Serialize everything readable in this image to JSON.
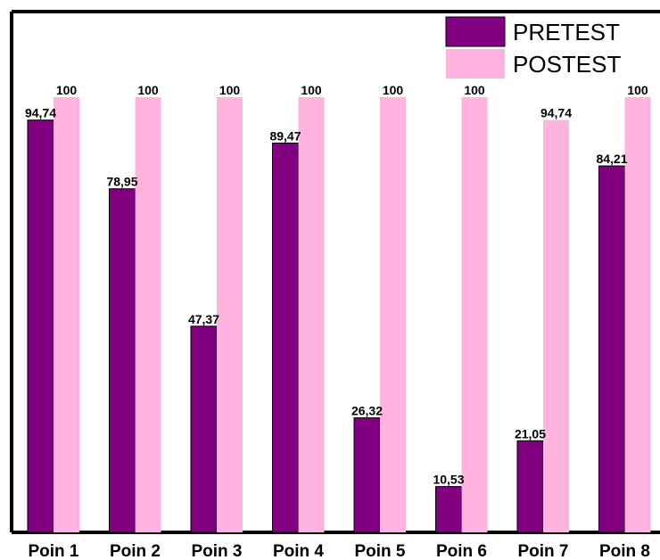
{
  "chart_data": {
    "type": "bar",
    "title": "",
    "xlabel": "",
    "ylabel": "",
    "categories": [
      "Poin 1",
      "Poin 2",
      "Poin 3",
      "Poin 4",
      "Poin 5",
      "Poin 6",
      "Poin 7",
      "Poin 8"
    ],
    "series": [
      {
        "name": "PRETEST",
        "color": "#800080",
        "values": [
          94.74,
          78.95,
          47.37,
          89.47,
          26.32,
          10.53,
          21.05,
          84.21
        ],
        "labels": [
          "94,74",
          "78,95",
          "47,37",
          "89,47",
          "26,32",
          "10,53",
          "21,05",
          "84,21"
        ]
      },
      {
        "name": "POSTEST",
        "color": "#FFB3DE",
        "values": [
          100,
          100,
          100,
          100,
          100,
          100,
          94.74,
          100
        ],
        "labels": [
          "100",
          "100",
          "100",
          "100",
          "100",
          "100",
          "94,74",
          "100"
        ]
      }
    ],
    "ylim": [
      0,
      100
    ],
    "grid": false,
    "legend_position": "top-right"
  }
}
